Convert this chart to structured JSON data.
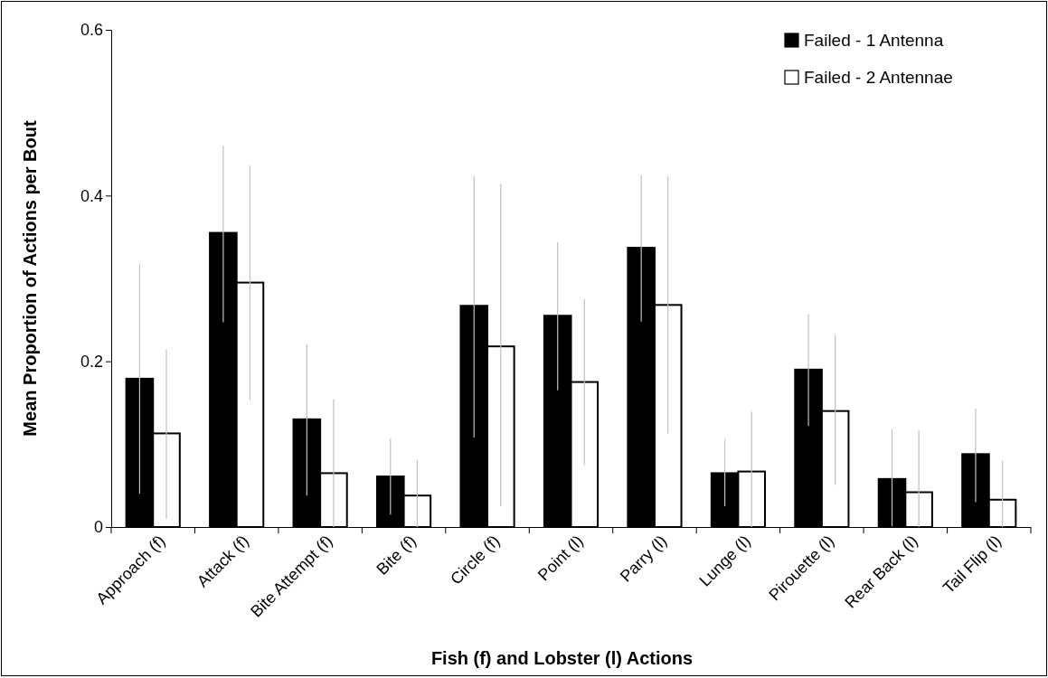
{
  "chart_data": {
    "type": "bar",
    "xlabel": "Fish (f) and Lobster (l) Actions",
    "ylabel": "Mean Proportion of Actions per Bout",
    "categories": [
      "Approach (f)",
      "Attack (f)",
      "Bite Attempt (f)",
      "Bite (f)",
      "Circle (f)",
      "Point (l)",
      "Parry (l)",
      "Lunge (l)",
      "Pirouette (l)",
      "Rear Back (l)",
      "Tail Flip (l)"
    ],
    "series": [
      {
        "name": "Failed - 1 Antenna",
        "color": "#000000",
        "values": [
          0.179,
          0.355,
          0.13,
          0.061,
          0.267,
          0.255,
          0.337,
          0.065,
          0.19,
          0.058,
          0.088
        ],
        "errors": [
          [
            0.04,
            0.317
          ],
          [
            0.247,
            0.46
          ],
          [
            0.038,
            0.22
          ],
          [
            0.015,
            0.107
          ],
          [
            0.108,
            0.423
          ],
          [
            0.165,
            0.344
          ],
          [
            0.248,
            0.425
          ],
          [
            0.025,
            0.106
          ],
          [
            0.122,
            0.257
          ],
          [
            0.001,
            0.118
          ],
          [
            0.03,
            0.143
          ]
        ]
      },
      {
        "name": "Failed - 2 Antennae",
        "color": "#ffffff",
        "values": [
          0.113,
          0.295,
          0.065,
          0.038,
          0.218,
          0.175,
          0.268,
          0.067,
          0.14,
          0.042,
          0.033
        ],
        "errors": [
          [
            0.01,
            0.214
          ],
          [
            0.153,
            0.436
          ],
          [
            0.0,
            0.154
          ],
          [
            0.0,
            0.081
          ],
          [
            0.025,
            0.414
          ],
          [
            0.075,
            0.275
          ],
          [
            0.113,
            0.423
          ],
          [
            0.0,
            0.139
          ],
          [
            0.051,
            0.231
          ],
          [
            0.0,
            0.117
          ],
          [
            0.0,
            0.08
          ]
        ]
      }
    ],
    "ylim": [
      0,
      0.6
    ],
    "yticks": [
      0,
      0.2,
      0.4,
      0.6
    ],
    "grid": false,
    "legend": "top right"
  }
}
